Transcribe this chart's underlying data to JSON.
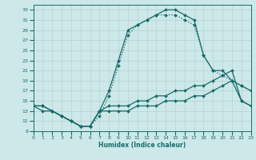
{
  "xlabel": "Humidex (Indice chaleur)",
  "xlim": [
    0,
    23
  ],
  "ylim": [
    9,
    34
  ],
  "xtick_vals": [
    0,
    1,
    2,
    3,
    4,
    5,
    6,
    7,
    8,
    9,
    10,
    11,
    12,
    13,
    14,
    15,
    16,
    17,
    18,
    19,
    20,
    21,
    22,
    23
  ],
  "ytick_vals": [
    9,
    11,
    13,
    15,
    17,
    19,
    21,
    23,
    25,
    27,
    29,
    31,
    33
  ],
  "bg_color": "#cce8e8",
  "line_color": "#1a6b6b",
  "grid_color": "#b8d4d4",
  "line1": {
    "x": [
      0,
      1,
      2,
      3,
      4,
      5,
      6,
      7,
      8,
      9,
      10,
      11,
      12,
      13,
      14,
      15,
      16,
      17,
      18,
      19,
      20,
      21,
      22,
      23
    ],
    "y": [
      14,
      14,
      13,
      12,
      11,
      10,
      10,
      13,
      17,
      23,
      29,
      30,
      31,
      32,
      33,
      33,
      32,
      31,
      24,
      21,
      21,
      19,
      18,
      17
    ],
    "linestyle": "-",
    "marker": "D",
    "markersize": 2.0,
    "linewidth": 0.9
  },
  "line2": {
    "x": [
      0,
      1,
      2,
      3,
      4,
      5,
      6,
      7,
      8,
      9,
      10,
      11,
      12,
      13,
      14,
      15,
      16,
      17,
      18,
      19,
      20,
      21,
      22,
      23
    ],
    "y": [
      14,
      14,
      13,
      12,
      11,
      10,
      10,
      12,
      16,
      22,
      28,
      30,
      31,
      32,
      32,
      32,
      31,
      30,
      24,
      21,
      20,
      19,
      18,
      17
    ],
    "linestyle": ":",
    "marker": "D",
    "markersize": 2.0,
    "linewidth": 0.9
  },
  "line3": {
    "x": [
      0,
      1,
      2,
      3,
      4,
      5,
      6,
      7,
      8,
      9,
      10,
      11,
      12,
      13,
      14,
      15,
      16,
      17,
      18,
      19,
      20,
      21,
      22,
      23
    ],
    "y": [
      14,
      14,
      13,
      12,
      11,
      10,
      10,
      13,
      14,
      14,
      14,
      15,
      15,
      16,
      16,
      17,
      17,
      18,
      18,
      19,
      20,
      21,
      15,
      14
    ],
    "linestyle": "-",
    "marker": "D",
    "markersize": 2.0,
    "linewidth": 0.9
  },
  "line4": {
    "x": [
      0,
      1,
      2,
      3,
      4,
      5,
      6,
      7,
      8,
      9,
      10,
      11,
      12,
      13,
      14,
      15,
      16,
      17,
      18,
      19,
      20,
      21,
      22,
      23
    ],
    "y": [
      14,
      13,
      13,
      12,
      11,
      10,
      10,
      13,
      13,
      13,
      13,
      14,
      14,
      14,
      15,
      15,
      15,
      16,
      16,
      17,
      18,
      19,
      15,
      14
    ],
    "linestyle": "-",
    "marker": "D",
    "markersize": 2.0,
    "linewidth": 0.9
  }
}
